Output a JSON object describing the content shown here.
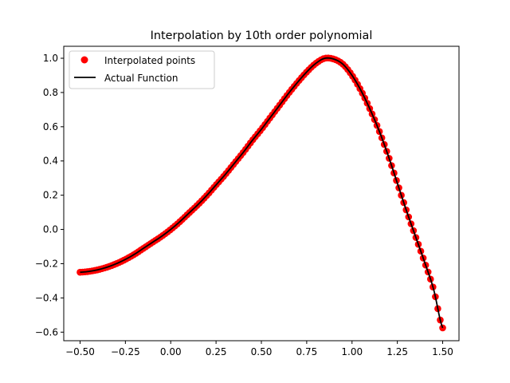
{
  "chart_data": {
    "type": "line",
    "title": "Interpolation by 10th order polynomial",
    "xlabel": "",
    "ylabel": "",
    "xlim": [
      -0.59,
      1.59
    ],
    "ylim": [
      -0.65,
      1.07
    ],
    "x_ticks": [
      -0.5,
      -0.25,
      0.0,
      0.25,
      0.5,
      0.75,
      1.0,
      1.25,
      1.5
    ],
    "x_tick_labels": [
      "−0.50",
      "−0.25",
      "0.00",
      "0.25",
      "0.50",
      "0.75",
      "1.00",
      "1.25",
      "1.50"
    ],
    "y_ticks": [
      -0.6,
      -0.4,
      -0.2,
      0.0,
      0.2,
      0.4,
      0.6,
      0.8,
      1.0
    ],
    "y_tick_labels": [
      "−0.6",
      "−0.4",
      "−0.2",
      "0.0",
      "0.2",
      "0.4",
      "0.6",
      "0.8",
      "1.0"
    ],
    "grid": false,
    "legend_position": "top-left",
    "x_range": [
      -0.5,
      1.5
    ],
    "curve_x": [
      -0.5,
      -0.45,
      -0.4,
      -0.35,
      -0.3,
      -0.25,
      -0.2,
      -0.15,
      -0.1,
      -0.05,
      0.0,
      0.05,
      0.1,
      0.15,
      0.2,
      0.25,
      0.3,
      0.35,
      0.4,
      0.45,
      0.5,
      0.55,
      0.6,
      0.65,
      0.7,
      0.75,
      0.8,
      0.85,
      0.9,
      0.95,
      1.0,
      1.05,
      1.1,
      1.15,
      1.2,
      1.25,
      1.3,
      1.35,
      1.4,
      1.45,
      1.5
    ],
    "curve_y": [
      -0.25,
      -0.245,
      -0.235,
      -0.22,
      -0.2,
      -0.175,
      -0.145,
      -0.11,
      -0.075,
      -0.04,
      0.0,
      0.045,
      0.095,
      0.145,
      0.2,
      0.26,
      0.32,
      0.385,
      0.45,
      0.52,
      0.585,
      0.655,
      0.725,
      0.795,
      0.86,
      0.92,
      0.97,
      1.0,
      0.995,
      0.965,
      0.9,
      0.81,
      0.7,
      0.575,
      0.43,
      0.27,
      0.11,
      -0.04,
      -0.19,
      -0.35,
      -0.575
    ],
    "point_count": 150,
    "series": [
      {
        "name": "Interpolated points",
        "style": "markers",
        "color": "#ff0000"
      },
      {
        "name": "Actual Function",
        "style": "line",
        "color": "#000000"
      }
    ]
  }
}
